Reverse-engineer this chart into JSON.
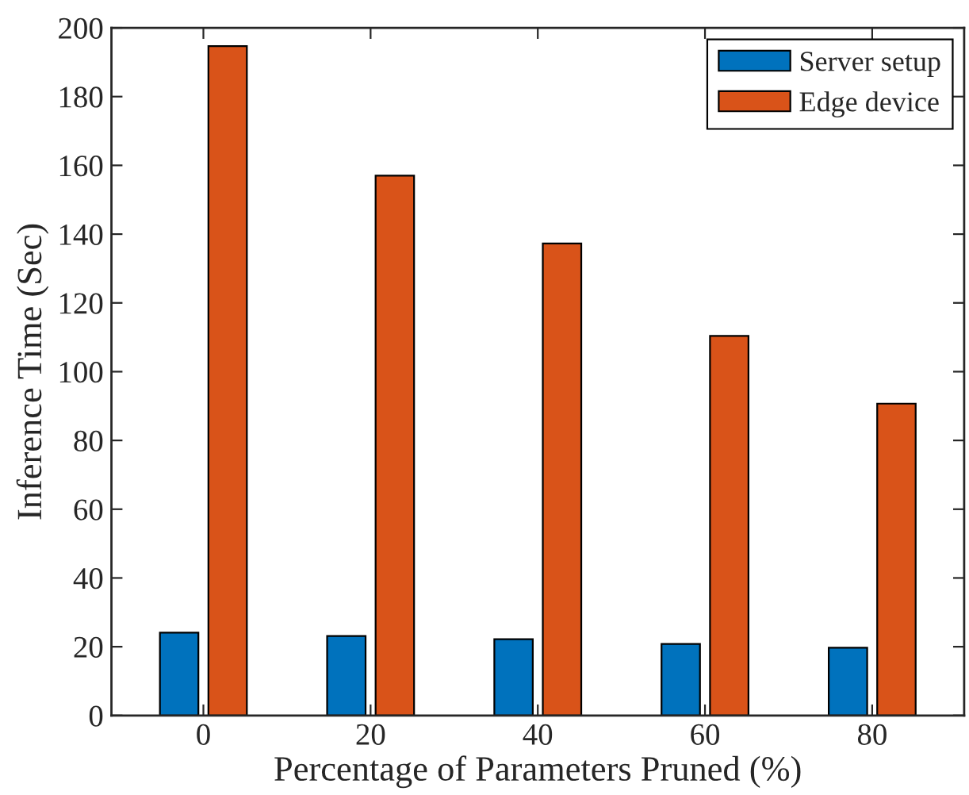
{
  "chart_data": {
    "type": "bar",
    "xlabel": "Percentage of Parameters Pruned (%)",
    "ylabel": "Inference Time (Sec)",
    "categories": [
      "0",
      "20",
      "40",
      "60",
      "80"
    ],
    "series": [
      {
        "name": "Server setup",
        "color": "#0072bd",
        "values": [
          24.1,
          23.1,
          22.2,
          20.8,
          19.7
        ]
      },
      {
        "name": "Edge device",
        "color": "#d95319",
        "values": [
          194.7,
          157,
          137.3,
          110.4,
          90.7
        ]
      }
    ],
    "ylim": [
      0,
      200
    ],
    "yticks": [
      0,
      20,
      40,
      60,
      80,
      100,
      120,
      140,
      160,
      180,
      200
    ],
    "grid": false,
    "legend": "top right"
  }
}
